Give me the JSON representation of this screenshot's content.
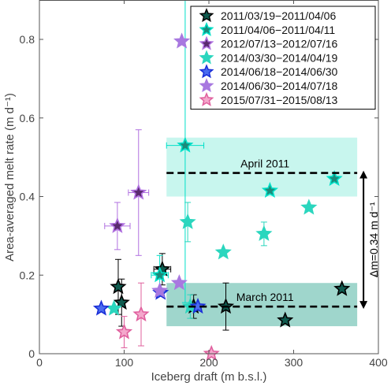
{
  "chart_data": {
    "type": "scatter",
    "xlabel": "Iceberg draft (m b.s.l.)",
    "ylabel": "Area-averaged melt rate (m d⁻¹)",
    "xlim": [
      0,
      400
    ],
    "ylim": [
      0,
      0.9
    ],
    "xticks": [
      "0",
      "100",
      "200",
      "300",
      "400"
    ],
    "yticks": [
      "0",
      "0.2",
      "0.4",
      "0.6",
      "0.8"
    ],
    "xtick_values": [
      0,
      100,
      200,
      300,
      400
    ],
    "ytick_values": [
      0,
      0.2,
      0.4,
      0.6,
      0.8
    ],
    "grid": false,
    "legend_position": "top-right",
    "series": [
      {
        "name": "2011/03/19−2011/04/06",
        "fill": "#0f5a4e",
        "stroke": "#000000",
        "points": [
          {
            "x": 93,
            "y": 0.17,
            "yerr": [
              0.07,
              0.07
            ]
          },
          {
            "x": 97,
            "y": 0.13,
            "yerr": [
              0.06,
              0.06
            ]
          },
          {
            "x": 145,
            "y": 0.215,
            "yerr": [
              0.04,
              0.04
            ],
            "xerr": [
              10,
              10
            ]
          },
          {
            "x": 182,
            "y": 0.12,
            "yerr": [
              0.03,
              0.03
            ]
          },
          {
            "x": 220,
            "y": 0.12,
            "yerr": [
              0.06,
              0.06
            ]
          },
          {
            "x": 290,
            "y": 0.085
          },
          {
            "x": 357,
            "y": 0.165
          }
        ]
      },
      {
        "name": "2011/04/06−2011/04/11",
        "fill": "#1c8a7a",
        "stroke": "#00e0c8",
        "points": [
          {
            "x": 142,
            "y": 0.2,
            "yerr": [
              0.05,
              0.05
            ],
            "xerr": [
              10,
              10
            ]
          },
          {
            "x": 172,
            "y": 0.53,
            "yerr": [
              0.4,
              0.4
            ],
            "xerr": [
              22,
              22
            ]
          },
          {
            "x": 272,
            "y": 0.415
          },
          {
            "x": 348,
            "y": 0.445
          }
        ]
      },
      {
        "name": "2012/07/13−2012/07/16",
        "fill": "#5a2a6e",
        "stroke": "#b070e0",
        "points": [
          {
            "x": 92,
            "y": 0.325,
            "yerr": [
              0.06,
              0.06
            ],
            "xerr": [
              15,
              15
            ]
          },
          {
            "x": 117,
            "y": 0.41,
            "yerr": [
              0.16,
              0.16
            ],
            "xerr": [
              12,
              12
            ]
          }
        ]
      },
      {
        "name": "2014/03/30−2014/04/19",
        "fill": "#2bd6be",
        "stroke": "#2bd6be",
        "points": [
          {
            "x": 88,
            "y": 0.115
          },
          {
            "x": 175,
            "y": 0.335,
            "yerr": [
              0.05,
              0.05
            ]
          },
          {
            "x": 178,
            "y": 0.12,
            "yerr": [
              0.03,
              0.03
            ]
          },
          {
            "x": 217,
            "y": 0.258
          },
          {
            "x": 265,
            "y": 0.305,
            "yerr": [
              0.03,
              0.03
            ]
          },
          {
            "x": 318,
            "y": 0.372
          }
        ]
      },
      {
        "name": "2014/06/18−2014/06/30",
        "fill": "#4a6cf0",
        "stroke": "#1a2ed8",
        "points": [
          {
            "x": 73,
            "y": 0.115
          },
          {
            "x": 143,
            "y": 0.155
          },
          {
            "x": 187,
            "y": 0.12
          }
        ]
      },
      {
        "name": "2014/06/30−2014/07/18",
        "fill": "#a878e0",
        "stroke": "#a878e0",
        "points": [
          {
            "x": 142,
            "y": 0.16
          },
          {
            "x": 165,
            "y": 0.18
          },
          {
            "x": 168,
            "y": 0.795
          }
        ]
      },
      {
        "name": "2015/07/31−2015/08/13",
        "fill": "#f4a8cc",
        "stroke": "#e0609e",
        "points": [
          {
            "x": 100,
            "y": 0.055,
            "yerr": [
              0.04,
              0.04
            ]
          },
          {
            "x": 120,
            "y": 0.1,
            "yerr": [
              0.08,
              0.08
            ]
          },
          {
            "x": 203,
            "y": 0.0
          }
        ]
      }
    ],
    "bands": [
      {
        "label": "April 2011",
        "x0": 150,
        "x1": 375,
        "y0": 0.4,
        "y1": 0.55,
        "mean": 0.46,
        "color": "#c8f6ee"
      },
      {
        "label": "March 2011",
        "x0": 150,
        "x1": 375,
        "y0": 0.07,
        "y1": 0.18,
        "mean": 0.12,
        "color": "#9fd6cc"
      }
    ],
    "difference_annotation": {
      "text": "Δm=0.34 m d⁻¹",
      "x": 375,
      "y_top": 0.46,
      "y_bottom": 0.12
    }
  }
}
